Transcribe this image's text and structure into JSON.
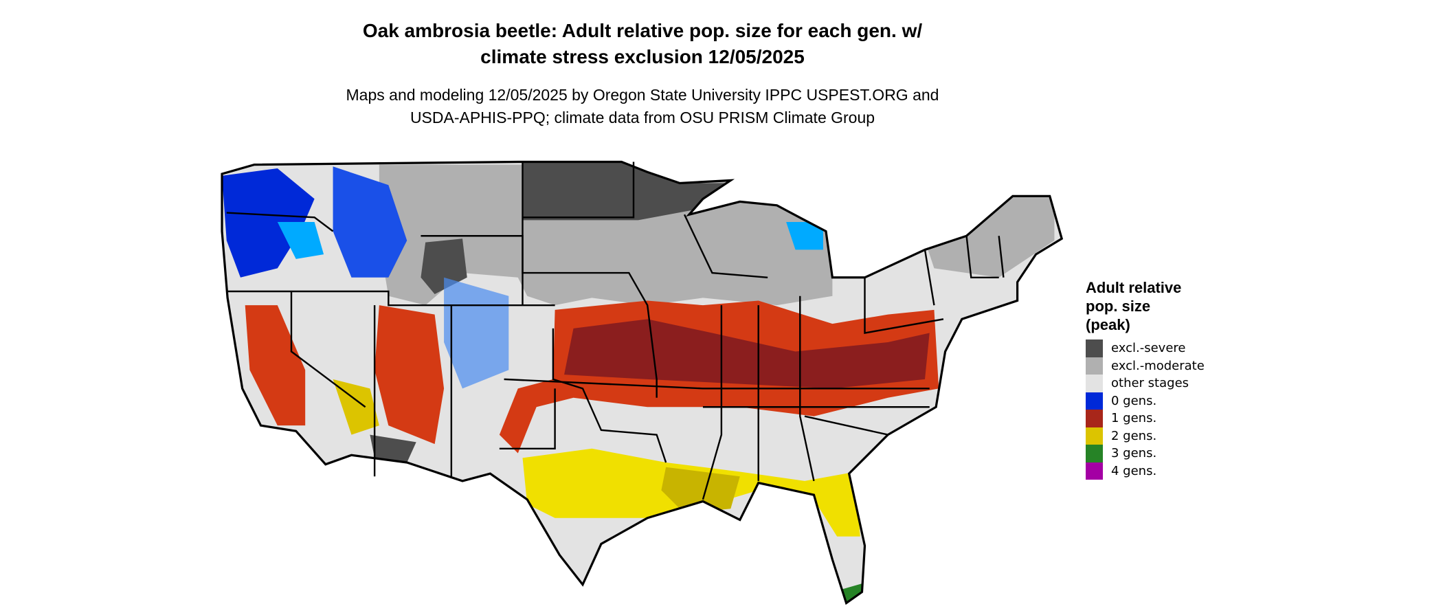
{
  "title": {
    "line1": "Oak ambrosia beetle: Adult relative pop. size for each gen. w/",
    "line2": "climate stress exclusion 12/05/2025"
  },
  "subtitle": {
    "line1": "Maps and modeling 12/05/2025 by Oregon State University IPPC USPEST.ORG and",
    "line2": "USDA-APHIS-PPQ; climate data from OSU PRISM Climate Group"
  },
  "legend": {
    "title_lines": [
      "Adult relative",
      "pop. size",
      "(peak)"
    ],
    "items": [
      {
        "label": "excl.-severe",
        "color": "#4d4d4d"
      },
      {
        "label": "excl.-moderate",
        "color": "#b0b0b0"
      },
      {
        "label": "other stages",
        "color": "#e3e3e3"
      },
      {
        "label": "0 gens.",
        "color": "#0029d8"
      },
      {
        "label": "1 gens.",
        "color": "#a8261a"
      },
      {
        "label": "2 gens.",
        "color": "#dcc400"
      },
      {
        "label": "3 gens.",
        "color": "#268326"
      },
      {
        "label": "4 gens.",
        "color": "#a400a4"
      }
    ]
  }
}
